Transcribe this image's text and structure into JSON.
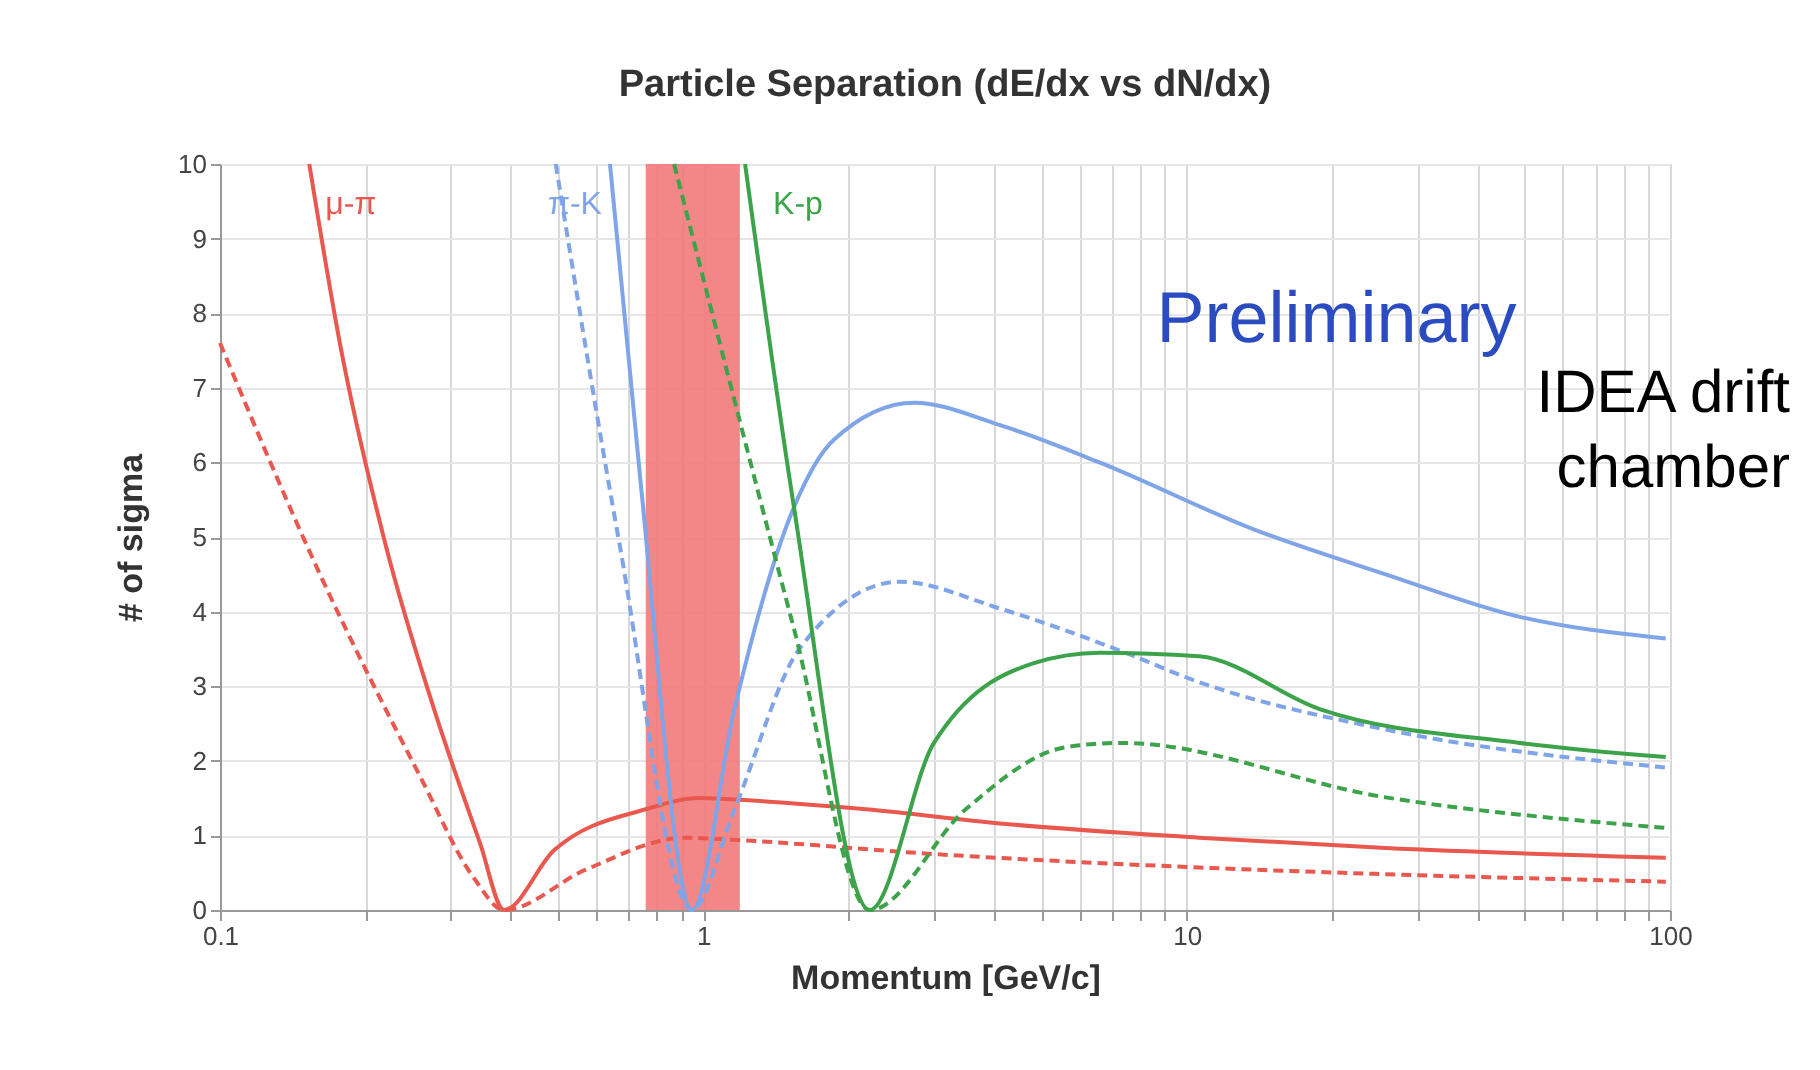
{
  "chart_data": {
    "type": "line",
    "title": "Particle Separation (dE/dx vs dN/dx)",
    "xlabel": "Momentum [GeV/c]",
    "ylabel": "# of sigma",
    "log": "x",
    "grid": true,
    "xlim": [
      0.1,
      100
    ],
    "ylim": [
      0,
      10
    ],
    "xticks": [
      0.1,
      {
        "value": 0.2,
        "label": null
      },
      {
        "value": 0.3,
        "label": null
      },
      {
        "value": 0.4,
        "label": null
      },
      {
        "value": 0.5,
        "label": null
      },
      {
        "value": 0.6,
        "label": null
      },
      {
        "value": 0.7,
        "label": null
      },
      {
        "value": 0.8,
        "label": null
      },
      {
        "value": 0.9,
        "label": null
      },
      1,
      {
        "value": 2,
        "label": null
      },
      {
        "value": 3,
        "label": null
      },
      {
        "value": 4,
        "label": null
      },
      {
        "value": 5,
        "label": null
      },
      {
        "value": 6,
        "label": null
      },
      {
        "value": 7,
        "label": null
      },
      {
        "value": 8,
        "label": null
      },
      {
        "value": 9,
        "label": null
      },
      10,
      {
        "value": 20,
        "label": null
      },
      {
        "value": 30,
        "label": null
      },
      {
        "value": 40,
        "label": null
      },
      {
        "value": 50,
        "label": null
      },
      {
        "value": 60,
        "label": null
      },
      {
        "value": 70,
        "label": null
      },
      {
        "value": 80,
        "label": null
      },
      {
        "value": 90,
        "label": null
      },
      100
    ],
    "yticks": [
      0,
      1,
      2,
      3,
      4,
      5,
      6,
      7,
      8,
      9,
      10
    ],
    "series": [
      {
        "name": "μ-π",
        "color": "#e8584f",
        "line_style": "solid",
        "x": [
          0.153,
          0.177,
          0.22,
          0.277,
          0.345,
          0.387,
          0.491,
          0.76,
          0.98,
          1.16,
          2.17,
          4.11,
          10.6,
          25.8,
          98
        ],
        "values": [
          10,
          7.6,
          4.9,
          2.7,
          0.9,
          0,
          0.8,
          1.35,
          1.5,
          1.48,
          1.35,
          1.16,
          0.97,
          0.83,
          0.7
        ]
      },
      {
        "color": "#e8584f",
        "line_style": "dashed",
        "x": [
          0.1,
          0.161,
          0.259,
          0.335,
          0.387,
          0.571,
          0.92,
          1.16,
          3.0,
          10.6,
          25.8,
          98
        ],
        "values": [
          7.6,
          4.5,
          1.8,
          0.43,
          0,
          0.54,
          0.97,
          0.94,
          0.75,
          0.57,
          0.48,
          0.38
        ]
      },
      {
        "name": "π-K",
        "color": "#7fa4e8",
        "line_style": "solid",
        "x": [
          0.641,
          0.74,
          0.947,
          1.16,
          1.54,
          1.86,
          2.73,
          4.11,
          6.6,
          13.8,
          25.8,
          48.9,
          98
        ],
        "values": [
          10,
          5.8,
          0,
          2.7,
          5.4,
          6.3,
          6.8,
          6.5,
          6.0,
          5.1,
          4.5,
          3.93,
          3.64
        ]
      },
      {
        "color": "#7fa4e8",
        "line_style": "dashed",
        "x": [
          0.495,
          0.671,
          0.947,
          1.16,
          1.58,
          2.55,
          4.11,
          7.8,
          9.96,
          25.8,
          98
        ],
        "values": [
          10,
          4.9,
          0,
          1.35,
          3.5,
          4.4,
          4.04,
          3.4,
          3.12,
          2.42,
          1.91
        ]
      },
      {
        "name": "K-p",
        "color": "#3ca34a",
        "line_style": "solid",
        "x": [
          1.22,
          1.54,
          2.21,
          3.0,
          4.83,
          6.6,
          10.6,
          18.9,
          48.9,
          98
        ],
        "values": [
          10,
          5.4,
          0,
          2.24,
          3.31,
          3.45,
          3.4,
          2.69,
          2.24,
          2.05
        ]
      },
      {
        "color": "#3ca34a",
        "line_style": "dashed",
        "x": [
          0.87,
          1.54,
          2.21,
          3.49,
          5.6,
          7.3,
          25.8,
          98
        ],
        "values": [
          10,
          3.77,
          0,
          1.35,
          2.18,
          2.24,
          1.51,
          1.1
        ]
      }
    ],
    "bands": [
      {
        "axis": "x",
        "from": 0.76,
        "to": 1.19,
        "color": "#f27a7a"
      }
    ],
    "annotations": [
      "Preliminary",
      "IDEA drift chamber"
    ]
  }
}
